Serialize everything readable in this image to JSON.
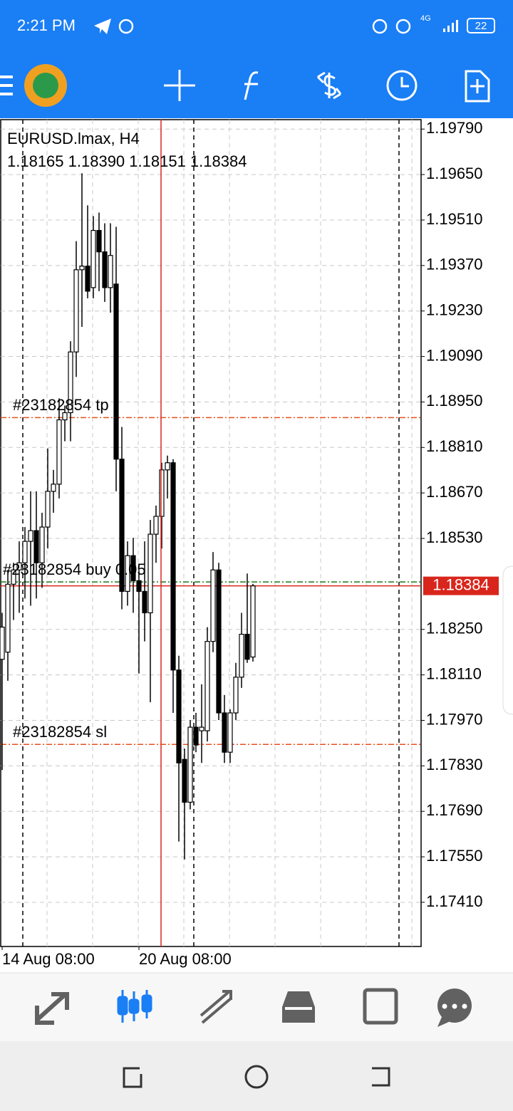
{
  "status_bar": {
    "time": "2:21 PM",
    "network": "4G",
    "battery": "22"
  },
  "chart_data": {
    "type": "candlestick",
    "title": "EURUSD.lmax, H4",
    "ohlc_text": "1.18165 1.18390 1.18151 1.18384",
    "categories": [
      "14 Aug 08:00",
      null,
      null,
      null,
      null,
      null,
      null,
      null,
      null,
      null,
      null,
      null,
      null,
      null,
      null,
      null,
      null,
      null,
      null,
      null,
      null,
      null,
      null,
      null,
      "20 Aug 08:00",
      null,
      null,
      null,
      null,
      null,
      null,
      null,
      null,
      null,
      null,
      null,
      null,
      null,
      null,
      null,
      null,
      null,
      null,
      null,
      null
    ],
    "open": [
      1.18158,
      1.1818,
      1.18389,
      1.18433,
      1.18455,
      1.18521,
      1.18554,
      1.18455,
      1.18565,
      1.18675,
      1.18697,
      1.18895,
      1.18917,
      1.19104,
      1.19357,
      1.19368,
      1.19302,
      1.19478,
      1.19412,
      1.19302,
      1.19313,
      1.18774,
      1.18367,
      1.18477,
      1.184,
      1.18367,
      1.18301,
      1.18543,
      1.18598,
      1.18741,
      1.18763,
      1.18125,
      1.1785,
      1.17718,
      1.17949,
      1.17938,
      1.17938,
      1.18213,
      1.18433,
      1.17993,
      1.17872,
      1.17993,
      1.18103,
      1.18235,
      1.18165
    ],
    "high": [
      1.18301,
      1.18433,
      1.18455,
      1.18521,
      1.18565,
      1.18675,
      1.18675,
      1.18609,
      1.18807,
      1.18741,
      1.18961,
      1.18939,
      1.19137,
      1.19445,
      1.19654,
      1.19555,
      1.19522,
      1.19533,
      1.195,
      1.195,
      1.19489,
      1.18873,
      1.18521,
      1.18532,
      1.18433,
      1.18521,
      1.18587,
      1.18631,
      1.18763,
      1.18785,
      1.18774,
      1.18169,
      1.17883,
      1.17971,
      1.17993,
      1.18081,
      1.18257,
      1.18488,
      1.18455,
      1.18048,
      1.18004,
      1.18147,
      1.18301,
      1.18422,
      1.1839
    ],
    "low": [
      1.17817,
      1.18092,
      1.18279,
      1.18301,
      1.18345,
      1.18323,
      1.18345,
      1.18378,
      1.18499,
      1.18609,
      1.18653,
      1.18829,
      1.18829,
      1.19027,
      1.19181,
      1.19269,
      1.19269,
      1.19291,
      1.19258,
      1.19225,
      1.18675,
      1.18312,
      1.18323,
      1.18301,
      1.18114,
      1.18213,
      1.18026,
      1.18455,
      1.18499,
      1.18653,
      1.17993,
      1.17597,
      1.17542,
      1.17696,
      1.17872,
      1.17839,
      1.17905,
      1.1818,
      1.17971,
      1.17839,
      1.17839,
      1.17971,
      1.1807,
      1.18147,
      1.18151
    ],
    "close": [
      1.18257,
      1.18389,
      1.18433,
      1.18455,
      1.18521,
      1.18554,
      1.18455,
      1.18565,
      1.18675,
      1.18697,
      1.18895,
      1.18917,
      1.19104,
      1.19357,
      1.19368,
      1.19291,
      1.19478,
      1.19412,
      1.19302,
      1.19401,
      1.18774,
      1.18367,
      1.18477,
      1.184,
      1.18367,
      1.18301,
      1.18543,
      1.18598,
      1.18741,
      1.18763,
      1.18125,
      1.17839,
      1.17718,
      1.17949,
      1.17894,
      1.17949,
      1.18213,
      1.18433,
      1.17993,
      1.17872,
      1.17993,
      1.18103,
      1.18235,
      1.18158,
      1.18384
    ],
    "ylim": [
      1.17274,
      1.19819
    ],
    "yticks": [
      {
        "value": 1.1979,
        "label": "1.19790"
      },
      {
        "value": 1.1965,
        "label": "1.19650"
      },
      {
        "value": 1.1951,
        "label": "1.19510"
      },
      {
        "value": 1.1937,
        "label": "1.19370"
      },
      {
        "value": 1.1923,
        "label": "1.19230"
      },
      {
        "value": 1.1909,
        "label": "1.19090"
      },
      {
        "value": 1.1895,
        "label": "1.18950"
      },
      {
        "value": 1.1881,
        "label": "1.18810"
      },
      {
        "value": 1.1867,
        "label": "1.18670"
      },
      {
        "value": 1.1853,
        "label": "1.18530"
      },
      {
        "value": 1.1825,
        "label": "1.18250"
      },
      {
        "value": 1.1811,
        "label": "1.18110"
      },
      {
        "value": 1.1797,
        "label": "1.17970"
      },
      {
        "value": 1.1783,
        "label": "1.17830"
      },
      {
        "value": 1.1769,
        "label": "1.17690"
      },
      {
        "value": 1.1755,
        "label": "1.17550"
      },
      {
        "value": 1.1741,
        "label": "1.17410"
      }
    ],
    "grid": true,
    "up_color": "#ffffff",
    "down_color": "#000000",
    "price_line_color": "#d9261c",
    "levels": [
      {
        "label": "#23182854 tp",
        "value": 1.18902,
        "color": "#e8501e"
      },
      {
        "label": "#23182854 buy 0.05",
        "value": 1.18396,
        "color": "#1a7a1a"
      },
      {
        "label": "#23182854 sl",
        "value": 1.17896,
        "color": "#e8501e"
      }
    ]
  }
}
